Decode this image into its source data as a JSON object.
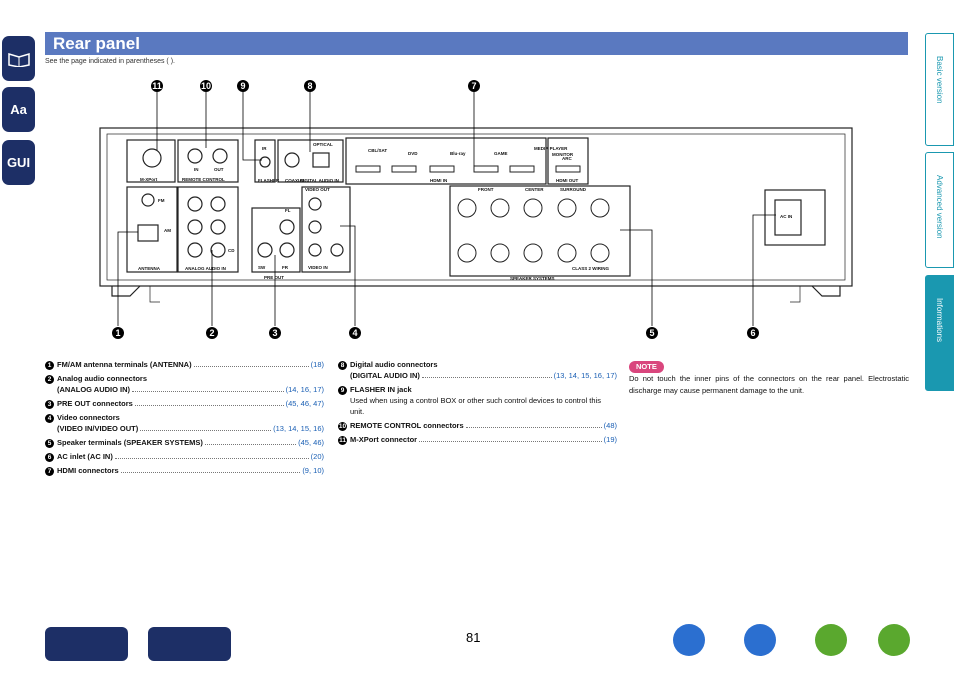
{
  "header": {
    "title": "Rear panel",
    "subtitle": "See the page indicated in parentheses ( )."
  },
  "side_tabs": [
    "Basic version",
    "Advanced version",
    "Informations"
  ],
  "left_icons": [
    "Aa",
    "GUI"
  ],
  "callouts_top": [
    "11",
    "10",
    "9",
    "8",
    "7"
  ],
  "callouts_bottom": [
    "1",
    "2",
    "3",
    "4",
    "5",
    "6"
  ],
  "panel": {
    "labels": [
      "M-XPort",
      "REMOTE CONTROL",
      "IN",
      "OUT",
      "IR",
      "FLASHER",
      "COAXIAL",
      "OPTICAL",
      "DIGITAL AUDIO IN",
      "HDMI IN",
      "HDMI OUT",
      "MONITOR",
      "ARC",
      "CBL/SAT",
      "DVD",
      "Blu-ray",
      "GAME",
      "MEDIA PLAYER",
      "ANTENNA",
      "AM",
      "FM",
      "ANALOG AUDIO IN",
      "CD",
      "PRE OUT",
      "SW",
      "FR",
      "FL",
      "VIDEO OUT",
      "VIDEO IN",
      "FRONT",
      "CENTER",
      "SURROUND",
      "SPEAKER SYSTEMS",
      "CLASS 2 WIRING",
      "AC IN"
    ]
  },
  "items_left": [
    {
      "num": "1",
      "label": "FM/AM antenna terminals (ANTENNA)",
      "pages": "(18)"
    },
    {
      "num": "2",
      "label": "Analog audio connectors",
      "label2": "(ANALOG AUDIO IN)",
      "pages": "(14, 16, 17)"
    },
    {
      "num": "3",
      "label": "PRE OUT connectors",
      "pages": "(45, 46, 47)"
    },
    {
      "num": "4",
      "label": "Video connectors",
      "label2": "(VIDEO IN/VIDEO OUT)",
      "pages": "(13, 14, 15, 16)"
    },
    {
      "num": "5",
      "label": "Speaker terminals (SPEAKER SYSTEMS)",
      "pages": "(45, 46)"
    },
    {
      "num": "6",
      "label": "AC inlet (AC IN)",
      "pages": "(20)"
    },
    {
      "num": "7",
      "label": "HDMI connectors",
      "pages": "(9, 10)"
    }
  ],
  "items_right": [
    {
      "num": "8",
      "label": "Digital audio connectors",
      "label2": "(DIGITAL AUDIO IN)",
      "pages": "(13, 14, 15, 16, 17)"
    },
    {
      "num": "9",
      "label": "FLASHER IN jack",
      "desc": "Used when using a control BOX or other such control devices to control this unit."
    },
    {
      "num": "10",
      "label": "REMOTE CONTROL connectors",
      "pages": "(48)"
    },
    {
      "num": "11",
      "label": "M-XPort connector",
      "pages": "(19)"
    }
  ],
  "note": {
    "title": "NOTE",
    "text": "Do not touch the inner pins of the connectors on the rear panel. Electrostatic discharge may cause permanent damage to the unit."
  },
  "page_number": "81"
}
